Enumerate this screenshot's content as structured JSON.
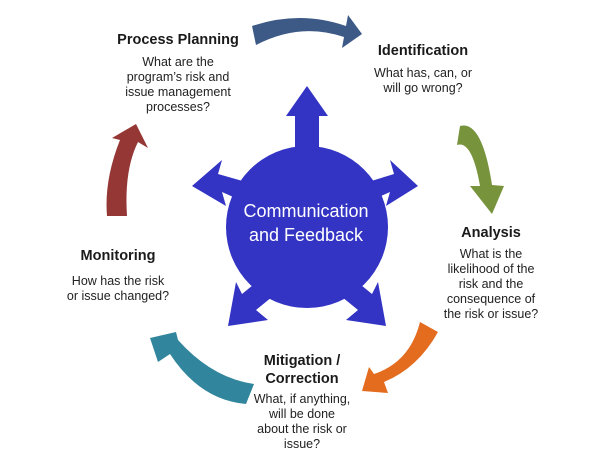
{
  "center": {
    "line1": "Communication",
    "line2": "and Feedback",
    "color": "#3333c4"
  },
  "stages": {
    "process_planning": {
      "title": "Process Planning",
      "desc": [
        "What are the",
        "program’s risk and",
        "issue management",
        "processes?"
      ]
    },
    "identification": {
      "title": "Identification",
      "desc": [
        "What has, can, or",
        "will go wrong?"
      ]
    },
    "analysis": {
      "title": "Analysis",
      "desc": [
        "What is the",
        "likelihood of the",
        "risk and the",
        "consequence of",
        "the risk or issue?"
      ]
    },
    "mitigation": {
      "title_lines": [
        "Mitigation /",
        "Correction"
      ],
      "desc": [
        "What, if anything,",
        "will be done",
        "about the risk or",
        "issue?"
      ]
    },
    "monitoring": {
      "title": "Monitoring",
      "desc": [
        "How has the risk",
        "or issue changed?"
      ]
    }
  },
  "arrow_colors": {
    "planning_to_identification": "#3d5a87",
    "identification_to_analysis": "#77933c",
    "analysis_to_mitigation": "#e36c1f",
    "mitigation_to_monitoring": "#31859c",
    "monitoring_to_planning": "#953735"
  }
}
